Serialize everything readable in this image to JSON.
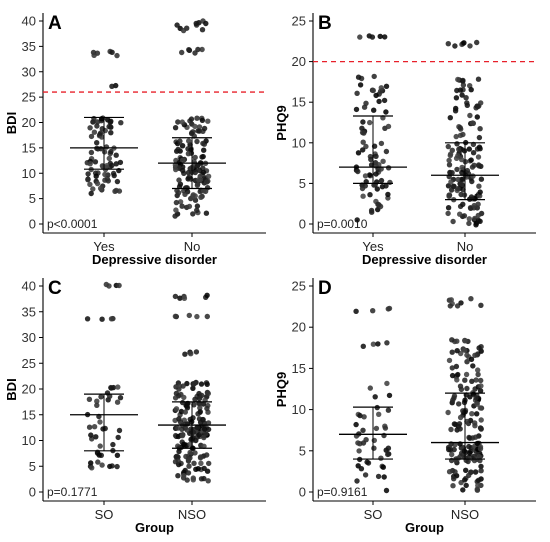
{
  "chart_data": [
    {
      "panel_label": "A",
      "type": "scatter",
      "subtype": "jittered dot plot with median and interquartile range",
      "xlabel": "Depressive disorder",
      "ylabel": "BDI",
      "categories": [
        "Yes",
        "No"
      ],
      "ylim": [
        0,
        40
      ],
      "yticks": [
        0,
        5,
        10,
        15,
        20,
        25,
        30,
        35,
        40
      ],
      "cutoff_line": 26,
      "cutoff_color": "#e8202a",
      "p_value": "p<0.0001",
      "summary": [
        {
          "category": "Yes",
          "q1": 10.8,
          "median": 15.0,
          "q3": 21.0
        },
        {
          "category": "No",
          "q1": 7.0,
          "median": 12.0,
          "q3": 17.0
        }
      ],
      "groups": [
        {
          "category": "Yes",
          "n": 85,
          "clusters": [
            {
              "lo": 33,
              "hi": 34,
              "n": 6
            },
            {
              "lo": 27,
              "hi": 27.3,
              "n": 2
            },
            {
              "lo": 16,
              "hi": 21,
              "n": 24
            },
            {
              "lo": 10,
              "hi": 16,
              "n": 30
            },
            {
              "lo": 5,
              "hi": 10,
              "n": 23
            }
          ]
        },
        {
          "category": "No",
          "n": 150,
          "clusters": [
            {
              "lo": 38,
              "hi": 40.4,
              "n": 10
            },
            {
              "lo": 33.6,
              "hi": 34.4,
              "n": 6
            },
            {
              "lo": 12,
              "hi": 21,
              "n": 54
            },
            {
              "lo": 7,
              "hi": 12,
              "n": 50
            },
            {
              "lo": 1.5,
              "hi": 7,
              "n": 30
            }
          ]
        }
      ]
    },
    {
      "panel_label": "B",
      "type": "scatter",
      "subtype": "jittered dot plot with median and interquartile range",
      "xlabel": "Depressive disorder",
      "ylabel": "PHQ9",
      "categories": [
        "Yes",
        "No"
      ],
      "ylim": [
        0,
        25
      ],
      "yticks": [
        0,
        5,
        10,
        15,
        20,
        25
      ],
      "cutoff_line": 20,
      "cutoff_color": "#e8202a",
      "p_value": "p=0.0010",
      "summary": [
        {
          "category": "Yes",
          "q1": 5.0,
          "median": 7.0,
          "q3": 13.3
        },
        {
          "category": "No",
          "q1": 3.0,
          "median": 6.0,
          "q3": 10.0
        }
      ],
      "groups": [
        {
          "category": "Yes",
          "n": 85,
          "clusters": [
            {
              "lo": 22.9,
              "hi": 23.4,
              "n": 5
            },
            {
              "lo": 13.5,
              "hi": 18.5,
              "n": 20
            },
            {
              "lo": 7,
              "hi": 13.5,
              "n": 26
            },
            {
              "lo": 4.5,
              "hi": 7,
              "n": 20
            },
            {
              "lo": 0,
              "hi": 4.5,
              "n": 14
            }
          ]
        },
        {
          "category": "No",
          "n": 150,
          "clusters": [
            {
              "lo": 21.9,
              "hi": 22.4,
              "n": 7
            },
            {
              "lo": 10,
              "hi": 18.3,
              "n": 38
            },
            {
              "lo": 6,
              "hi": 10,
              "n": 42
            },
            {
              "lo": 3,
              "hi": 6,
              "n": 38
            },
            {
              "lo": -0.3,
              "hi": 3,
              "n": 25
            }
          ]
        }
      ]
    },
    {
      "panel_label": "C",
      "type": "scatter",
      "subtype": "jittered dot plot with median and interquartile range",
      "xlabel": "Group",
      "ylabel": "BDI",
      "categories": [
        "SO",
        "NSO"
      ],
      "ylim": [
        0,
        40
      ],
      "yticks": [
        0,
        5,
        10,
        15,
        20,
        25,
        30,
        35,
        40
      ],
      "p_value": "p=0.1771",
      "summary": [
        {
          "category": "SO",
          "q1": 8.0,
          "median": 15.0,
          "q3": 19.0
        },
        {
          "category": "NSO",
          "q1": 8.5,
          "median": 13.0,
          "q3": 17.5
        }
      ],
      "groups": [
        {
          "category": "SO",
          "n": 50,
          "clusters": [
            {
              "lo": 40,
              "hi": 40.3,
              "n": 4
            },
            {
              "lo": 33.5,
              "hi": 34,
              "n": 4
            },
            {
              "lo": 15,
              "hi": 21.5,
              "n": 14
            },
            {
              "lo": 8,
              "hi": 15,
              "n": 14
            },
            {
              "lo": 4.5,
              "hi": 8,
              "n": 14
            }
          ]
        },
        {
          "category": "NSO",
          "n": 185,
          "clusters": [
            {
              "lo": 37.5,
              "hi": 38.3,
              "n": 6
            },
            {
              "lo": 33.5,
              "hi": 34.3,
              "n": 5
            },
            {
              "lo": 26.7,
              "hi": 27.2,
              "n": 4
            },
            {
              "lo": 13,
              "hi": 21.5,
              "n": 66
            },
            {
              "lo": 8.5,
              "hi": 13,
              "n": 60
            },
            {
              "lo": 2,
              "hi": 8.5,
              "n": 44
            }
          ]
        }
      ]
    },
    {
      "panel_label": "D",
      "type": "scatter",
      "subtype": "jittered dot plot with median and interquartile range",
      "xlabel": "Group",
      "ylabel": "PHQ9",
      "categories": [
        "SO",
        "NSO"
      ],
      "ylim": [
        0,
        25
      ],
      "yticks": [
        0,
        5,
        10,
        15,
        20,
        25
      ],
      "p_value": "p=0.9161",
      "summary": [
        {
          "category": "SO",
          "q1": 4.0,
          "median": 7.0,
          "q3": 10.3
        },
        {
          "category": "NSO",
          "q1": 4.0,
          "median": 6.0,
          "q3": 12.0
        }
      ],
      "groups": [
        {
          "category": "SO",
          "n": 50,
          "clusters": [
            {
              "lo": 21.9,
              "hi": 22.4,
              "n": 4
            },
            {
              "lo": 17.5,
              "hi": 18.3,
              "n": 4
            },
            {
              "lo": 7,
              "hi": 13.5,
              "n": 16
            },
            {
              "lo": 4,
              "hi": 7,
              "n": 14
            },
            {
              "lo": 0,
              "hi": 4,
              "n": 12
            }
          ]
        },
        {
          "category": "NSO",
          "n": 185,
          "clusters": [
            {
              "lo": 22.5,
              "hi": 23.5,
              "n": 8
            },
            {
              "lo": 12,
              "hi": 18.5,
              "n": 46
            },
            {
              "lo": 6,
              "hi": 12,
              "n": 52
            },
            {
              "lo": 4,
              "hi": 6,
              "n": 44
            },
            {
              "lo": -0.3,
              "hi": 4,
              "n": 35
            }
          ]
        }
      ]
    }
  ]
}
